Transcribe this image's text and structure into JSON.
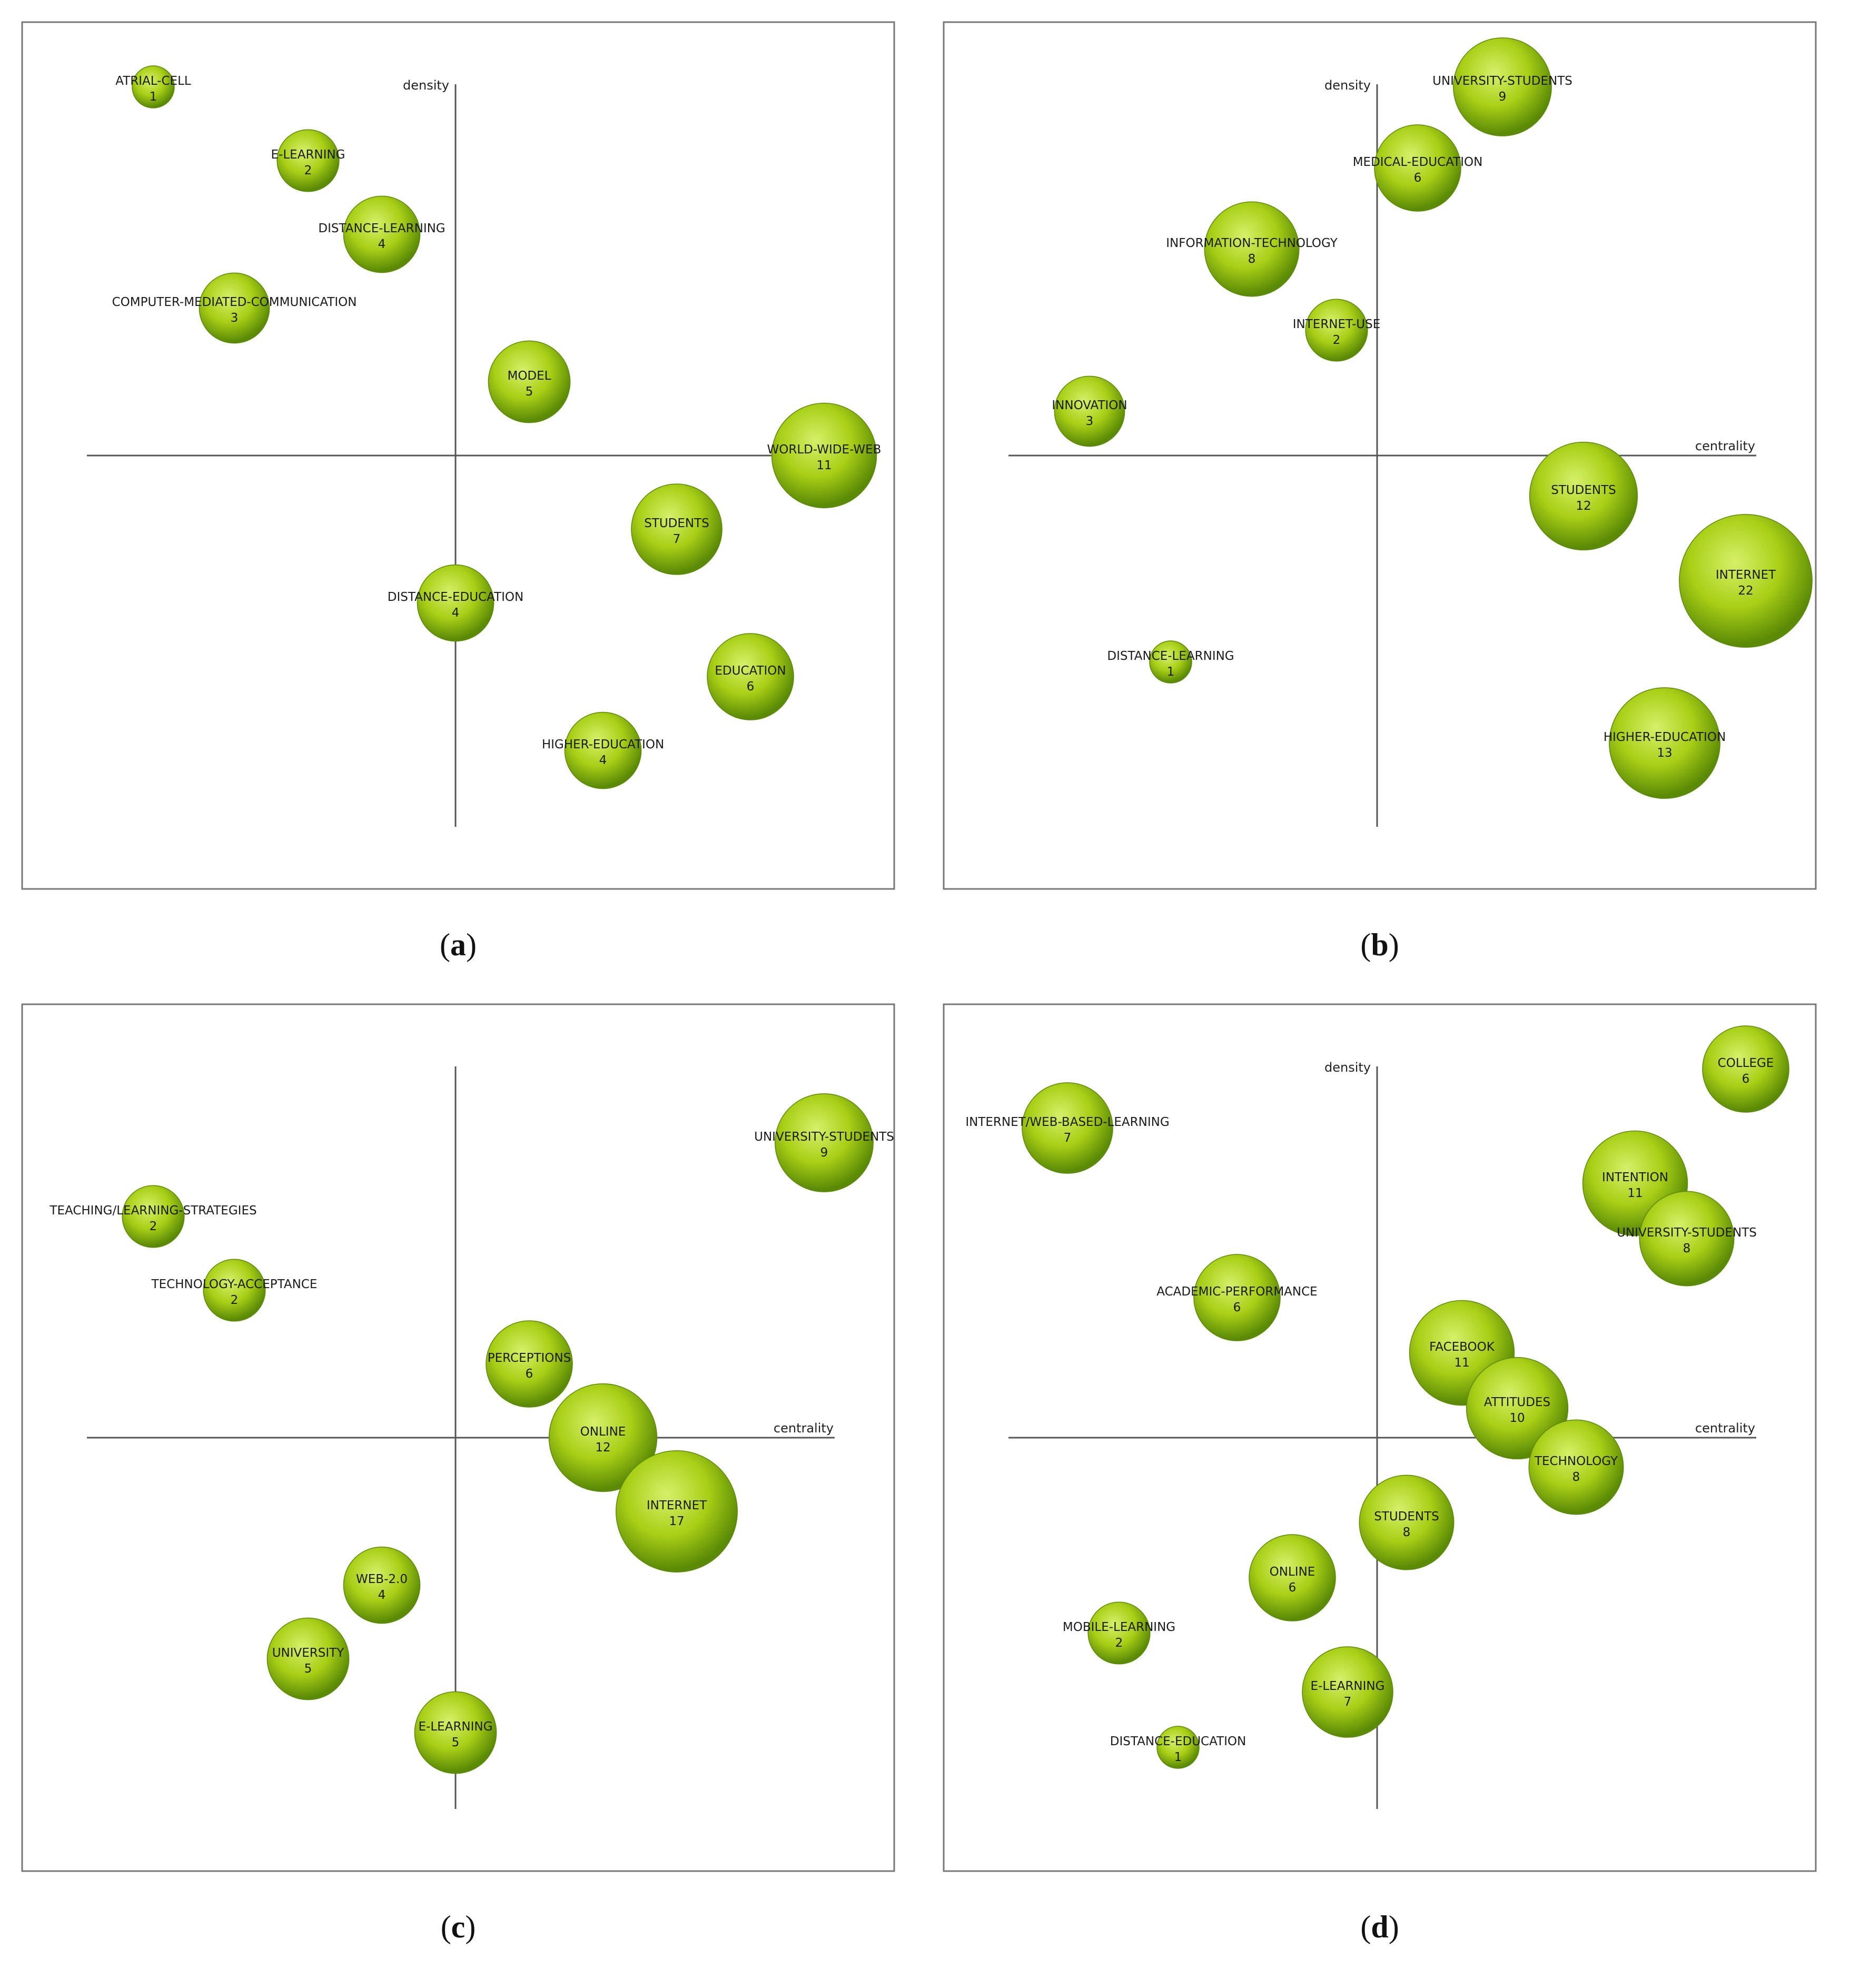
{
  "colors": {
    "bubble_light": "#d6f06a",
    "bubble_mid": "#a9cf16",
    "bubble_dark": "#5b8a06",
    "axis": "#555555",
    "frame": "#777777"
  },
  "panels": [
    {
      "caption_letter": "a",
      "x_axis_label": "",
      "y_axis_label": "density"
    },
    {
      "caption_letter": "b",
      "x_axis_label": "centrality",
      "y_axis_label": "density"
    },
    {
      "caption_letter": "c",
      "x_axis_label": "centrality",
      "y_axis_label": ""
    },
    {
      "caption_letter": "d",
      "x_axis_label": "centrality",
      "y_axis_label": "density"
    }
  ],
  "chart_data": [
    {
      "type": "scatter",
      "panel": "a",
      "xlabel": "",
      "ylabel": "density",
      "xlim": [
        -5,
        6
      ],
      "ylim": [
        -5,
        5
      ],
      "points": [
        {
          "label": "ATRIAL-CELL",
          "count": "1",
          "x": -4.1,
          "y": 5.0,
          "r": 1
        },
        {
          "label": "E-LEARNING",
          "count": "2",
          "x": -2.0,
          "y": 4.0,
          "r": 2
        },
        {
          "label": "DISTANCE-LEARNING",
          "count": "4",
          "x": -1.0,
          "y": 3.0,
          "r": 4
        },
        {
          "label": "COMPUTER-MEDIATED-COMMUNICATION",
          "count": "3",
          "x": -3.0,
          "y": 2.0,
          "r": 3
        },
        {
          "label": "MODEL",
          "count": "5",
          "x": 1.0,
          "y": 1.0,
          "r": 5
        },
        {
          "label": "WORLD-WIDE-WEB",
          "count": "11",
          "x": 5.0,
          "y": 0.0,
          "r": 11
        },
        {
          "label": "STUDENTS",
          "count": "7",
          "x": 3.0,
          "y": -1.0,
          "r": 7
        },
        {
          "label": "DISTANCE-EDUCATION",
          "count": "4",
          "x": 0.0,
          "y": -2.0,
          "r": 4
        },
        {
          "label": "EDUCATION",
          "count": "6",
          "x": 4.0,
          "y": -3.0,
          "r": 6
        },
        {
          "label": "HIGHER-EDUCATION",
          "count": "4",
          "x": 2.0,
          "y": -4.0,
          "r": 4
        }
      ]
    },
    {
      "type": "scatter",
      "panel": "b",
      "xlabel": "centrality",
      "ylabel": "density",
      "xlim": [
        -5,
        6
      ],
      "ylim": [
        -5,
        5
      ],
      "points": [
        {
          "label": "UNIVERSITY-STUDENTS",
          "count": "9",
          "x": 1.7,
          "y": 5.0,
          "r": 9
        },
        {
          "label": "MEDICAL-EDUCATION",
          "count": "6",
          "x": 0.55,
          "y": 3.9,
          "r": 6
        },
        {
          "label": "INFORMATION-TECHNOLOGY",
          "count": "8",
          "x": -1.7,
          "y": 2.8,
          "r": 8
        },
        {
          "label": "INTERNET-USE",
          "count": "2",
          "x": -0.55,
          "y": 1.7,
          "r": 2
        },
        {
          "label": "INNOVATION",
          "count": "3",
          "x": -3.9,
          "y": 0.6,
          "r": 3
        },
        {
          "label": "STUDENTS",
          "count": "12",
          "x": 2.8,
          "y": -0.55,
          "r": 12
        },
        {
          "label": "INTERNET",
          "count": "22",
          "x": 5.0,
          "y": -1.7,
          "r": 22
        },
        {
          "label": "DISTANCE-LEARNING",
          "count": "1",
          "x": -2.8,
          "y": -2.8,
          "r": 1
        },
        {
          "label": "HIGHER-EDUCATION",
          "count": "13",
          "x": 3.9,
          "y": -3.9,
          "r": 13
        }
      ]
    },
    {
      "type": "scatter",
      "panel": "c",
      "xlabel": "centrality",
      "ylabel": "",
      "xlim": [
        -5,
        6
      ],
      "ylim": [
        -5,
        5
      ],
      "points": [
        {
          "label": "UNIVERSITY-STUDENTS",
          "count": "9",
          "x": 5.0,
          "y": 4.0,
          "r": 9
        },
        {
          "label": "TEACHING/LEARNING-STRATEGIES",
          "count": "2",
          "x": -4.1,
          "y": 3.0,
          "r": 2
        },
        {
          "label": "TECHNOLOGY-ACCEPTANCE",
          "count": "2",
          "x": -3.0,
          "y": 2.0,
          "r": 2
        },
        {
          "label": "PERCEPTIONS",
          "count": "6",
          "x": 1.0,
          "y": 1.0,
          "r": 6
        },
        {
          "label": "ONLINE",
          "count": "12",
          "x": 2.0,
          "y": 0.0,
          "r": 12
        },
        {
          "label": "INTERNET",
          "count": "17",
          "x": 3.0,
          "y": -1.0,
          "r": 17
        },
        {
          "label": "WEB-2.0",
          "count": "4",
          "x": -1.0,
          "y": -2.0,
          "r": 4
        },
        {
          "label": "UNIVERSITY",
          "count": "5",
          "x": -2.0,
          "y": -3.0,
          "r": 5
        },
        {
          "label": "E-LEARNING",
          "count": "5",
          "x": 0.0,
          "y": -4.0,
          "r": 5
        }
      ]
    },
    {
      "type": "scatter",
      "panel": "d",
      "xlabel": "centrality",
      "ylabel": "density",
      "xlim": [
        -5,
        6
      ],
      "ylim": [
        -5,
        5
      ],
      "points": [
        {
          "label": "COLLEGE",
          "count": "6",
          "x": 5.0,
          "y": 5.0,
          "r": 6
        },
        {
          "label": "INTERNET/WEB-BASED-LEARNING",
          "count": "7",
          "x": -4.2,
          "y": 4.2,
          "r": 7
        },
        {
          "label": "INTENTION",
          "count": "11",
          "x": 3.5,
          "y": 3.45,
          "r": 11
        },
        {
          "label": "UNIVERSITY-STUDENTS",
          "count": "8",
          "x": 4.2,
          "y": 2.7,
          "r": 8
        },
        {
          "label": "ACADEMIC-PERFORMANCE",
          "count": "6",
          "x": -1.9,
          "y": 1.9,
          "r": 6
        },
        {
          "label": "FACEBOOK",
          "count": "11",
          "x": 1.15,
          "y": 1.15,
          "r": 11
        },
        {
          "label": "ATTITUDES",
          "count": "10",
          "x": 1.9,
          "y": 0.4,
          "r": 10
        },
        {
          "label": "TECHNOLOGY",
          "count": "8",
          "x": 2.7,
          "y": -0.4,
          "r": 8
        },
        {
          "label": "STUDENTS",
          "count": "8",
          "x": 0.4,
          "y": -1.15,
          "r": 8
        },
        {
          "label": "ONLINE",
          "count": "6",
          "x": -1.15,
          "y": -1.9,
          "r": 6
        },
        {
          "label": "MOBILE-LEARNING",
          "count": "2",
          "x": -3.5,
          "y": -2.65,
          "r": 2
        },
        {
          "label": "E-LEARNING",
          "count": "7",
          "x": -0.4,
          "y": -3.45,
          "r": 7
        },
        {
          "label": "DISTANCE-EDUCATION",
          "count": "1",
          "x": -2.7,
          "y": -4.2,
          "r": 1
        }
      ]
    }
  ]
}
